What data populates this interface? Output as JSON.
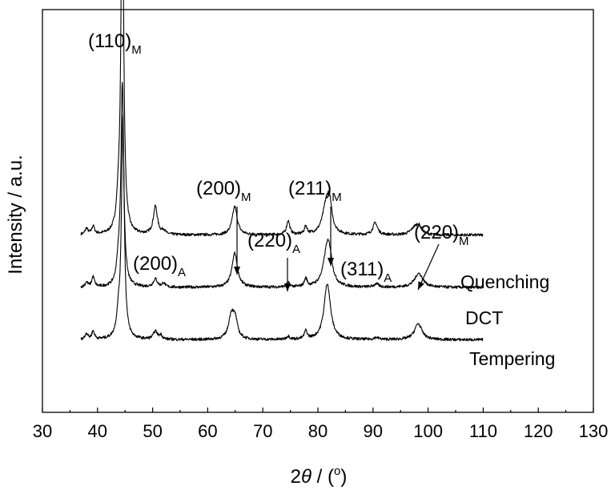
{
  "chart_data": {
    "type": "line",
    "xlabel": {
      "prefix": "2",
      "symbol": "θ",
      "unit_open": " / (",
      "unit_sup": "o",
      "unit_close": ")"
    },
    "ylabel": "Intensity / a.u.",
    "xlim": [
      30,
      130
    ],
    "x_ticks": [
      30,
      40,
      50,
      60,
      70,
      80,
      90,
      100,
      110,
      120,
      130
    ],
    "y_ticks_shown": false,
    "x_range_of_data": [
      37,
      110
    ],
    "series": [
      {
        "name": "Quenching",
        "baseline": 0.44,
        "peaks": [
          {
            "x": 38.0,
            "h": 0.015,
            "w": 0.3
          },
          {
            "x": 39.2,
            "h": 0.02,
            "w": 0.3
          },
          {
            "x": 43.8,
            "h": 0.06,
            "w": 0.4
          },
          {
            "x": 44.5,
            "h": 0.93,
            "w": 0.28
          },
          {
            "x": 50.5,
            "h": 0.07,
            "w": 0.45
          },
          {
            "x": 52.0,
            "h": 0.01,
            "w": 0.3
          },
          {
            "x": 64.9,
            "h": 0.07,
            "w": 0.55
          },
          {
            "x": 74.6,
            "h": 0.035,
            "w": 0.35
          },
          {
            "x": 77.8,
            "h": 0.02,
            "w": 0.3
          },
          {
            "x": 81.5,
            "h": 0.07,
            "w": 0.8
          },
          {
            "x": 82.1,
            "h": 0.06,
            "w": 0.5
          },
          {
            "x": 90.4,
            "h": 0.03,
            "w": 0.5
          },
          {
            "x": 97.5,
            "h": 0.015,
            "w": 0.8
          },
          {
            "x": 98.3,
            "h": 0.02,
            "w": 0.6
          }
        ]
      },
      {
        "name": "DCT",
        "baseline": 0.31,
        "peaks": [
          {
            "x": 38.0,
            "h": 0.012,
            "w": 0.3
          },
          {
            "x": 39.2,
            "h": 0.025,
            "w": 0.3
          },
          {
            "x": 43.8,
            "h": 0.05,
            "w": 0.4
          },
          {
            "x": 44.5,
            "h": 0.5,
            "w": 0.3
          },
          {
            "x": 50.5,
            "h": 0.02,
            "w": 0.45
          },
          {
            "x": 52.0,
            "h": 0.01,
            "w": 0.3
          },
          {
            "x": 64.9,
            "h": 0.085,
            "w": 0.6
          },
          {
            "x": 74.6,
            "h": 0.01,
            "w": 0.35
          },
          {
            "x": 77.8,
            "h": 0.02,
            "w": 0.3
          },
          {
            "x": 81.7,
            "h": 0.1,
            "w": 0.8
          },
          {
            "x": 82.2,
            "h": 0.03,
            "w": 0.5
          },
          {
            "x": 90.6,
            "h": 0.008,
            "w": 0.5
          },
          {
            "x": 98.3,
            "h": 0.035,
            "w": 0.9
          }
        ]
      },
      {
        "name": "Tempering",
        "baseline": 0.18,
        "peaks": [
          {
            "x": 38.0,
            "h": 0.015,
            "w": 0.3
          },
          {
            "x": 39.2,
            "h": 0.02,
            "w": 0.3
          },
          {
            "x": 43.8,
            "h": 0.05,
            "w": 0.4
          },
          {
            "x": 44.6,
            "h": 0.55,
            "w": 0.3
          },
          {
            "x": 50.5,
            "h": 0.02,
            "w": 0.45
          },
          {
            "x": 51.5,
            "h": 0.01,
            "w": 0.3
          },
          {
            "x": 64.3,
            "h": 0.06,
            "w": 0.6
          },
          {
            "x": 65.0,
            "h": 0.04,
            "w": 0.5
          },
          {
            "x": 74.6,
            "h": 0.008,
            "w": 0.35
          },
          {
            "x": 77.8,
            "h": 0.02,
            "w": 0.3
          },
          {
            "x": 81.7,
            "h": 0.14,
            "w": 0.7
          },
          {
            "x": 90.6,
            "h": 0.005,
            "w": 0.5
          },
          {
            "x": 98.2,
            "h": 0.04,
            "w": 0.8
          }
        ]
      }
    ],
    "annotations": [
      {
        "main": "(110)",
        "sub": "M",
        "x": 44.5
      },
      {
        "main": "(200)",
        "sub": "A",
        "x": 50.5
      },
      {
        "main": "(200)",
        "sub": "M",
        "x": 64.9,
        "arrow": true
      },
      {
        "main": "(220)",
        "sub": "A",
        "x": 74.6,
        "arrow": true
      },
      {
        "main": "(211)",
        "sub": "M",
        "x": 82.0,
        "arrow": true
      },
      {
        "main": "(311)",
        "sub": "A",
        "x": 90.4
      },
      {
        "main": "(220)",
        "sub": "M",
        "x": 98.2,
        "arrow": true
      }
    ]
  }
}
